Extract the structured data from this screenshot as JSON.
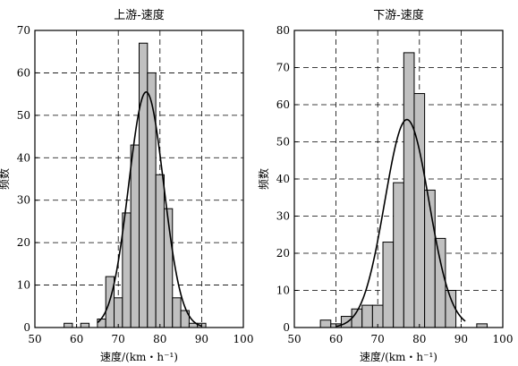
{
  "chart_data": [
    {
      "type": "bar",
      "title": "上游-速度",
      "xlabel": "速度/(km・h⁻¹)",
      "ylabel": "频数",
      "xlim": [
        50,
        100
      ],
      "ylim": [
        0,
        70
      ],
      "xticks": [
        50,
        60,
        70,
        80,
        90,
        100
      ],
      "yticks": [
        0,
        10,
        20,
        30,
        40,
        50,
        60,
        70
      ],
      "grid": true,
      "histogram": {
        "bin_width": 2,
        "bin_starts": [
          57,
          61,
          65,
          67,
          69,
          71,
          73,
          75,
          77,
          79,
          81,
          83,
          85,
          87,
          89
        ],
        "values": [
          1,
          1,
          2,
          12,
          7,
          27,
          43,
          67,
          60,
          36,
          28,
          7,
          4,
          1,
          1
        ]
      },
      "fit_curve": {
        "type": "normal",
        "mean": 76.7,
        "sd": 4.2,
        "peak": 55.5,
        "x_range": [
          65,
          90
        ]
      }
    },
    {
      "type": "bar",
      "title": "下游-速度",
      "xlabel": "速度/(km・h⁻¹)",
      "ylabel": "频数",
      "xlim": [
        50,
        100
      ],
      "ylim": [
        0,
        80
      ],
      "xticks": [
        50,
        60,
        70,
        80,
        90,
        100
      ],
      "yticks": [
        0,
        10,
        20,
        30,
        40,
        50,
        60,
        70,
        80
      ],
      "grid": true,
      "histogram": {
        "bin_width": 2.5,
        "bin_starts": [
          56.25,
          58.75,
          61.25,
          63.75,
          66.25,
          68.75,
          71.25,
          73.75,
          76.25,
          78.75,
          81.25,
          83.75,
          86.25,
          93.75
        ],
        "values": [
          2,
          1,
          3,
          5,
          6,
          6,
          23,
          39,
          74,
          63,
          37,
          24,
          10,
          1
        ]
      },
      "fit_curve": {
        "type": "normal",
        "mean": 77.0,
        "sd": 5.3,
        "peak": 56.0,
        "x_range": [
          60,
          91
        ]
      }
    }
  ]
}
